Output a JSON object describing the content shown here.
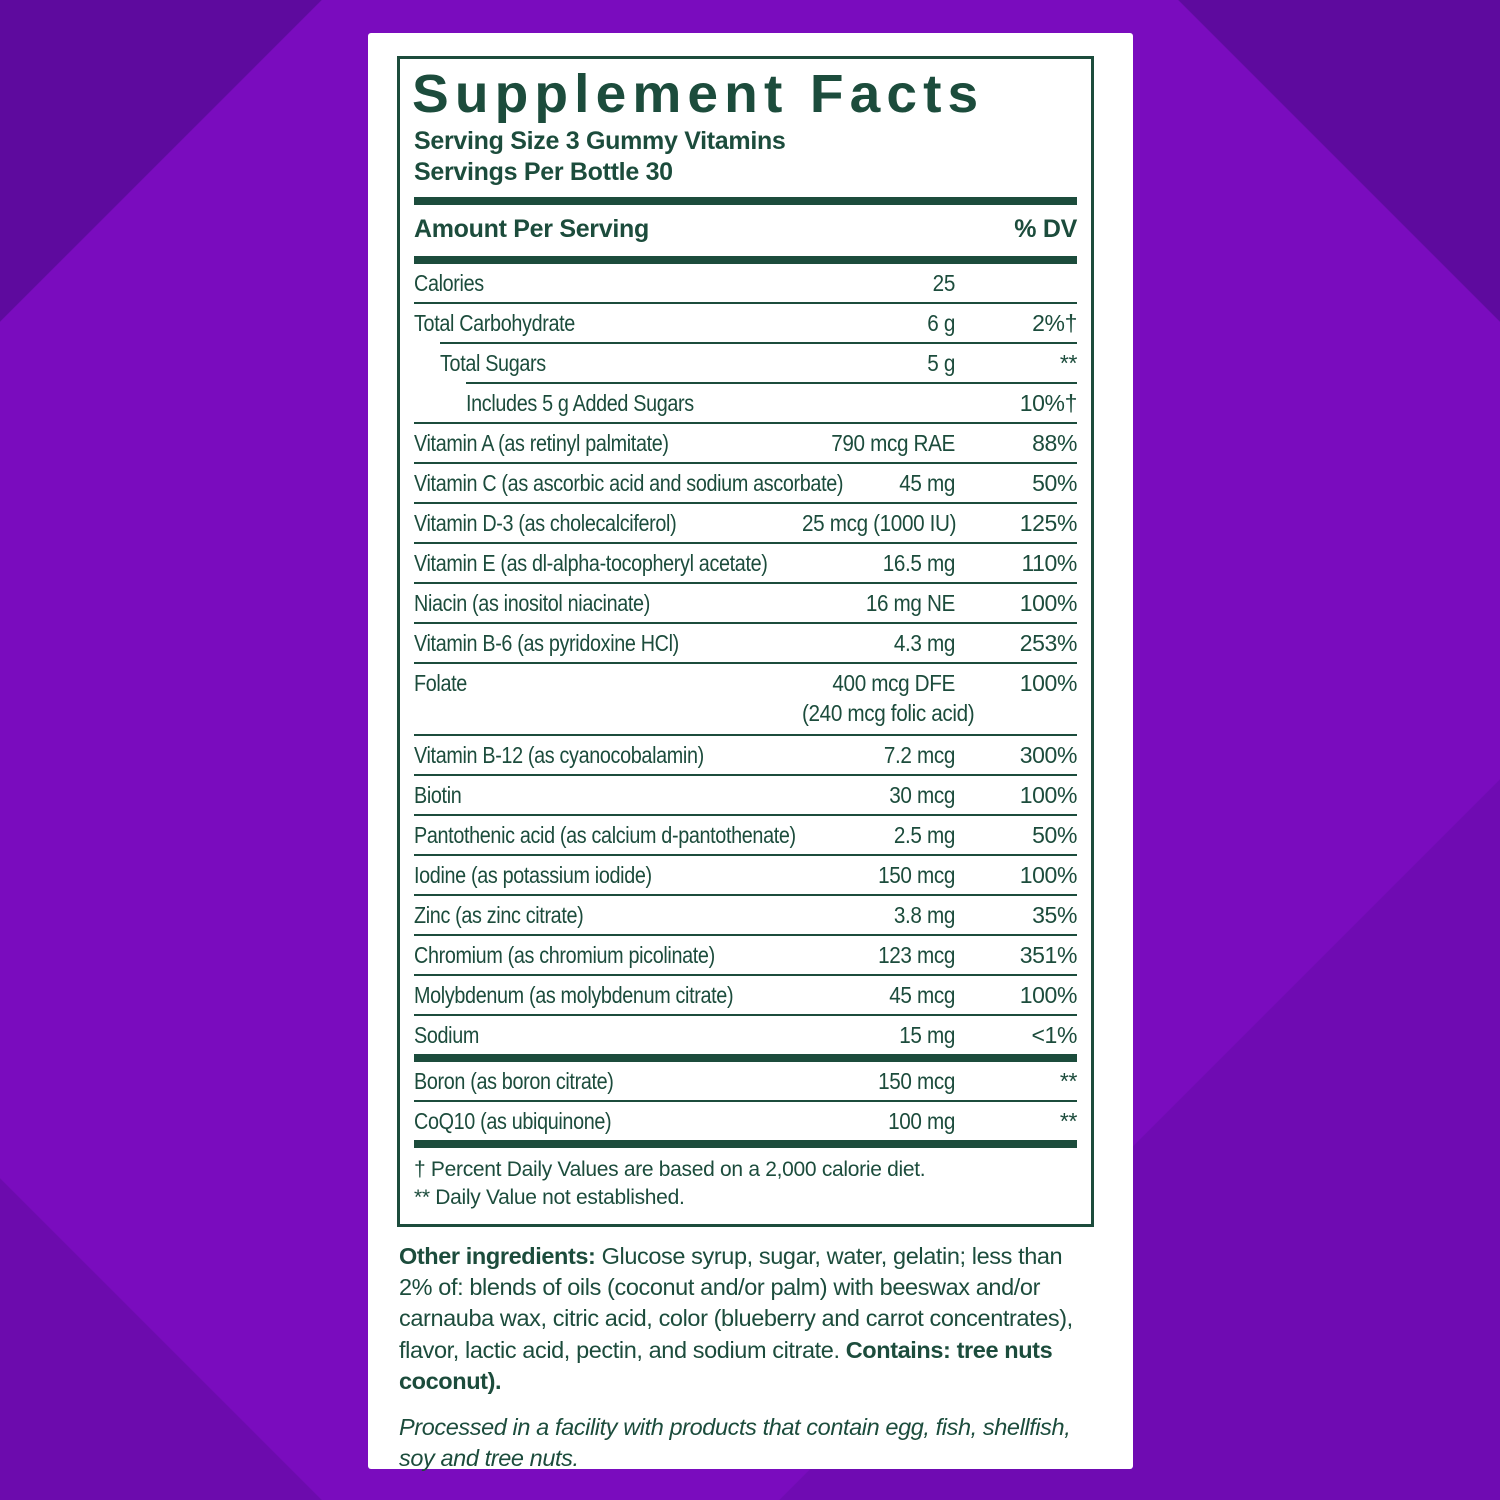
{
  "label": {
    "title": "Supplement Facts",
    "serving_size": "Serving Size 3 Gummy Vitamins",
    "servings_per_bottle": "Servings Per Bottle 30",
    "header": {
      "amount": "Amount Per Serving",
      "dv": "% DV"
    },
    "rows": [
      {
        "name": "Calories",
        "amount": "25",
        "dv": "",
        "indent": 0
      },
      {
        "name": "Total Carbohydrate",
        "amount": "6 g",
        "dv": "2%†",
        "indent": 0
      },
      {
        "name": "Total Sugars",
        "amount": "5 g",
        "dv": "**",
        "indent": 1
      },
      {
        "name": "Includes 5 g Added Sugars",
        "amount": "",
        "dv": "10%†",
        "indent": 2
      },
      {
        "name": "Vitamin A (as retinyl palmitate)",
        "amount": "790 mcg RAE",
        "dv": "88%",
        "indent": 0
      },
      {
        "name": "Vitamin C (as ascorbic acid and sodium ascorbate)",
        "amount": "45 mg",
        "dv": "50%",
        "indent": 0
      },
      {
        "name": "Vitamin D-3 (as cholecalciferol)",
        "amount": "25 mcg (1000 IU)",
        "dv": "125%",
        "indent": 0
      },
      {
        "name": "Vitamin E (as dl-alpha-tocopheryl acetate)",
        "amount": "16.5 mg",
        "dv": "110%",
        "indent": 0
      },
      {
        "name": "Niacin (as inositol niacinate)",
        "amount": "16 mg NE",
        "dv": "100%",
        "indent": 0
      },
      {
        "name": "Vitamin B-6 (as pyridoxine HCl)",
        "amount": "4.3 mg",
        "dv": "253%",
        "indent": 0
      },
      {
        "name": "Folate",
        "amount": "400 mcg DFE",
        "dv": "100%",
        "indent": 0
      },
      {
        "name": "",
        "amount": "(240 mcg folic acid)",
        "dv": "",
        "indent": 0,
        "subline": true
      },
      {
        "name": "Vitamin B-12 (as cyanocobalamin)",
        "amount": "7.2 mcg",
        "dv": "300%",
        "indent": 0
      },
      {
        "name": "Biotin",
        "amount": "30 mcg",
        "dv": "100%",
        "indent": 0
      },
      {
        "name": "Pantothenic acid (as calcium d-pantothenate)",
        "amount": "2.5 mg",
        "dv": "50%",
        "indent": 0
      },
      {
        "name": "Iodine (as potassium iodide)",
        "amount": "150 mcg",
        "dv": "100%",
        "indent": 0
      },
      {
        "name": "Zinc (as zinc citrate)",
        "amount": "3.8 mg",
        "dv": "35%",
        "indent": 0
      },
      {
        "name": "Chromium (as chromium picolinate)",
        "amount": "123 mcg",
        "dv": "351%",
        "indent": 0
      },
      {
        "name": "Molybdenum (as molybdenum citrate)",
        "amount": "45 mcg",
        "dv": "100%",
        "indent": 0
      },
      {
        "name": "Sodium",
        "amount": "15 mg",
        "dv": "<1%",
        "indent": 0
      }
    ],
    "extra_rows": [
      {
        "name": "Boron (as boron citrate)",
        "amount": "150 mcg",
        "dv": "**",
        "indent": 0
      },
      {
        "name": "CoQ10 (as ubiquinone)",
        "amount": "100 mg",
        "dv": "**",
        "indent": 0
      }
    ],
    "footnote_dagger": "† Percent Daily Values are based on a 2,000 calorie diet.",
    "footnote_asterisk": "** Daily Value not established.",
    "other_ingredients": {
      "lead": "Other ingredients:",
      "body": " Glucose syrup, sugar, water, gelatin; less than 2% of: blends of oils (coconut and/or palm) with beeswax and/or carnauba wax, citric acid, color (blueberry and carrot concentrates), flavor, lactic acid, pectin, and sodium citrate. ",
      "contains": "Contains: tree nuts coconut)."
    },
    "facility_note": "Processed in a facility with products that contain egg, fish, shellfish, soy and tree nuts."
  },
  "colors": {
    "background_purple": "#7a0cbe",
    "background_purple_dark": "#5e0a9e",
    "background_purple_mid": "#6c0bad",
    "card_white": "#ffffff",
    "text_green": "#1c4c3c"
  }
}
